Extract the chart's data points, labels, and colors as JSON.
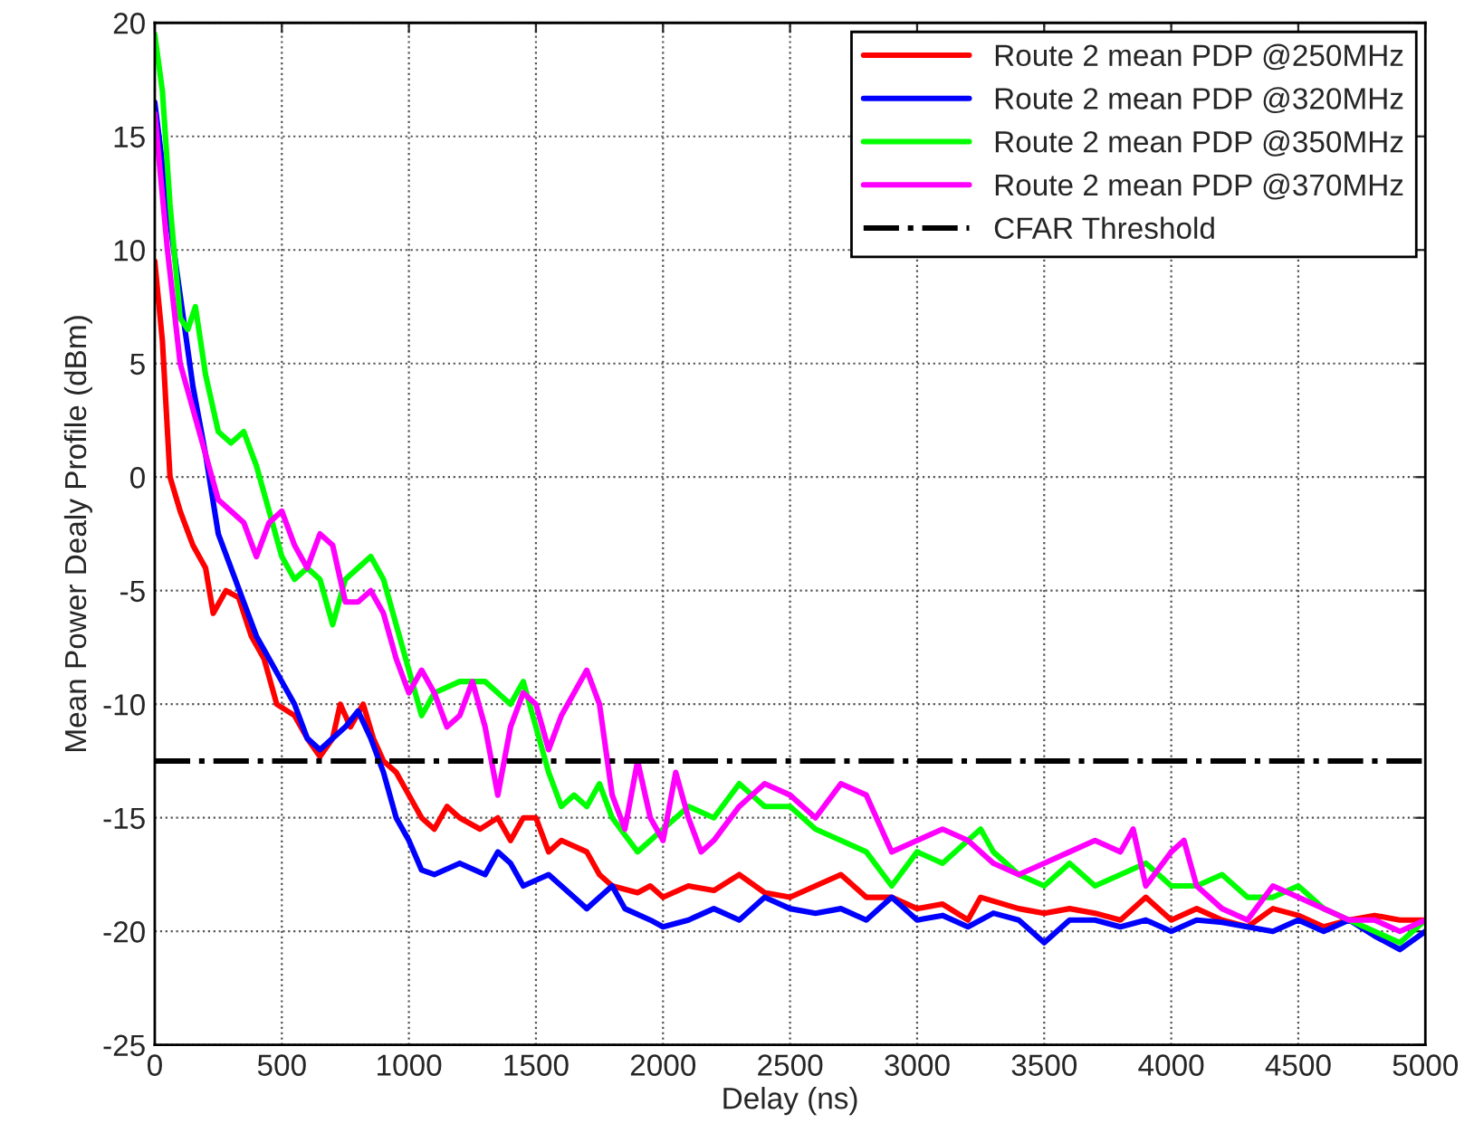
{
  "chart_data": {
    "type": "line",
    "xlabel": "Delay (ns)",
    "ylabel": "Mean Power Dealy Profile (dBm)",
    "xlim": [
      0,
      5000
    ],
    "xticks": [
      0,
      500,
      1000,
      1500,
      2000,
      2500,
      3000,
      3500,
      4000,
      4500,
      5000
    ],
    "ylim": [
      -25,
      20
    ],
    "yticks": [
      -25,
      -20,
      -15,
      -10,
      -5,
      0,
      5,
      10,
      15,
      20
    ],
    "grid": true,
    "legend": "top right",
    "line_style": "solid",
    "series": [
      {
        "name": "Route 2 mean PDP @250MHz",
        "color": "#ff0000",
        "x": [
          0,
          30,
          60,
          100,
          150,
          200,
          230,
          280,
          330,
          380,
          430,
          480,
          550,
          600,
          650,
          700,
          730,
          770,
          820,
          860,
          900,
          950,
          1000,
          1050,
          1100,
          1150,
          1200,
          1280,
          1350,
          1400,
          1450,
          1500,
          1550,
          1600,
          1700,
          1750,
          1800,
          1900,
          1950,
          2000,
          2100,
          2200,
          2300,
          2400,
          2500,
          2600,
          2700,
          2800,
          2900,
          3000,
          3100,
          3200,
          3250,
          3400,
          3500,
          3600,
          3700,
          3800,
          3900,
          4000,
          4100,
          4200,
          4300,
          4400,
          4500,
          4600,
          4700,
          4800,
          4900,
          5000
        ],
        "values": [
          9.5,
          6,
          0,
          -1.5,
          -3,
          -4,
          -6,
          -5,
          -5.3,
          -7,
          -8,
          -10,
          -10.5,
          -11.5,
          -12.3,
          -11.5,
          -10,
          -11,
          -10,
          -11.5,
          -12.5,
          -13,
          -14,
          -15,
          -15.5,
          -14.5,
          -15,
          -15.5,
          -15,
          -16,
          -15,
          -15,
          -16.5,
          -16,
          -16.5,
          -17.5,
          -18,
          -18.3,
          -18,
          -18.5,
          -18,
          -18.2,
          -17.5,
          -18.3,
          -18.5,
          -18,
          -17.5,
          -18.5,
          -18.5,
          -19,
          -18.8,
          -19.5,
          -18.5,
          -19,
          -19.2,
          -19,
          -19.2,
          -19.5,
          -18.5,
          -19.5,
          -19,
          -19.5,
          -19.8,
          -19,
          -19.3,
          -19.8,
          -19.5,
          -19.3,
          -19.5,
          -19.5
        ]
      },
      {
        "name": "Route 2 mean PDP @320MHz",
        "color": "#0000ff",
        "x": [
          0,
          50,
          100,
          150,
          200,
          250,
          300,
          350,
          400,
          450,
          500,
          550,
          600,
          650,
          700,
          750,
          800,
          850,
          900,
          950,
          1000,
          1050,
          1100,
          1200,
          1300,
          1350,
          1400,
          1450,
          1550,
          1650,
          1700,
          1750,
          1800,
          1850,
          1950,
          2000,
          2100,
          2200,
          2300,
          2400,
          2500,
          2600,
          2700,
          2800,
          2900,
          3000,
          3100,
          3200,
          3300,
          3400,
          3500,
          3600,
          3700,
          3800,
          3900,
          4000,
          4100,
          4200,
          4300,
          4400,
          4500,
          4600,
          4700,
          4800,
          4900,
          5000
        ],
        "values": [
          16.5,
          12,
          8,
          4,
          1,
          -2.5,
          -4,
          -5.5,
          -7,
          -8,
          -9,
          -10,
          -11.5,
          -12,
          -11.5,
          -11,
          -10.3,
          -11.5,
          -13,
          -15,
          -16,
          -17.3,
          -17.5,
          -17,
          -17.5,
          -16.5,
          -17,
          -18,
          -17.5,
          -18.5,
          -19,
          -18.5,
          -18,
          -19,
          -19.5,
          -19.8,
          -19.5,
          -19,
          -19.5,
          -18.5,
          -19,
          -19.2,
          -19,
          -19.5,
          -18.5,
          -19.5,
          -19.3,
          -19.8,
          -19.2,
          -19.5,
          -20.5,
          -19.5,
          -19.5,
          -19.8,
          -19.5,
          -20,
          -19.5,
          -19.6,
          -19.8,
          -20,
          -19.5,
          -20,
          -19.5,
          -20.2,
          -20.8,
          -20
        ]
      },
      {
        "name": "Route 2 mean PDP @350MHz",
        "color": "#00ff00",
        "x": [
          0,
          30,
          60,
          100,
          130,
          160,
          200,
          250,
          300,
          350,
          400,
          450,
          500,
          550,
          600,
          650,
          700,
          750,
          800,
          850,
          900,
          950,
          1000,
          1050,
          1100,
          1200,
          1300,
          1400,
          1450,
          1500,
          1550,
          1600,
          1650,
          1700,
          1750,
          1800,
          1900,
          2000,
          2100,
          2200,
          2300,
          2400,
          2500,
          2600,
          2700,
          2800,
          2900,
          3000,
          3100,
          3200,
          3250,
          3300,
          3400,
          3500,
          3600,
          3700,
          3800,
          3900,
          4000,
          4100,
          4200,
          4300,
          4400,
          4500,
          4600,
          4700,
          4800,
          4900,
          5000
        ],
        "values": [
          19.5,
          17,
          12,
          7,
          6.5,
          7.5,
          4.5,
          2,
          1.5,
          2,
          0.5,
          -1.5,
          -3.5,
          -4.5,
          -4,
          -4.5,
          -6.5,
          -4.5,
          -4,
          -3.5,
          -4.5,
          -6.5,
          -8.5,
          -10.5,
          -9.5,
          -9,
          -9,
          -10,
          -9,
          -11,
          -13,
          -14.5,
          -14,
          -14.5,
          -13.5,
          -15,
          -16.5,
          -15.5,
          -14.5,
          -15,
          -13.5,
          -14.5,
          -14.5,
          -15.5,
          -16,
          -16.5,
          -18,
          -16.5,
          -17,
          -16,
          -15.5,
          -16.5,
          -17.5,
          -18,
          -17,
          -18,
          -17.5,
          -17,
          -18,
          -18,
          -17.5,
          -18.5,
          -18.5,
          -18,
          -19,
          -19.5,
          -20,
          -20.5,
          -19.5
        ]
      },
      {
        "name": "Route 2 mean PDP @370MHz",
        "color": "#ff00ff",
        "x": [
          0,
          50,
          100,
          150,
          200,
          250,
          300,
          350,
          400,
          450,
          500,
          550,
          600,
          650,
          700,
          750,
          800,
          850,
          900,
          950,
          1000,
          1050,
          1100,
          1150,
          1200,
          1250,
          1300,
          1350,
          1400,
          1450,
          1500,
          1550,
          1600,
          1650,
          1700,
          1750,
          1800,
          1850,
          1900,
          1950,
          2000,
          2050,
          2100,
          2150,
          2200,
          2300,
          2400,
          2500,
          2600,
          2700,
          2800,
          2900,
          3000,
          3100,
          3200,
          3300,
          3400,
          3500,
          3600,
          3700,
          3800,
          3850,
          3900,
          4000,
          4050,
          4100,
          4200,
          4300,
          4400,
          4500,
          4600,
          4700,
          4800,
          4900,
          5000
        ],
        "values": [
          16,
          10,
          5,
          3,
          1,
          -1,
          -1.5,
          -2,
          -3.5,
          -2,
          -1.5,
          -3,
          -4,
          -2.5,
          -3,
          -5.5,
          -5.5,
          -5,
          -6,
          -8,
          -9.5,
          -8.5,
          -9.5,
          -11,
          -10.5,
          -9,
          -11,
          -14,
          -11,
          -9.5,
          -10,
          -12,
          -10.5,
          -9.5,
          -8.5,
          -10,
          -14,
          -15.5,
          -12.5,
          -15,
          -16,
          -13,
          -15,
          -16.5,
          -16,
          -14.5,
          -13.5,
          -14,
          -15,
          -13.5,
          -14,
          -16.5,
          -16,
          -15.5,
          -16,
          -17,
          -17.5,
          -17,
          -16.5,
          -16,
          -16.5,
          -15.5,
          -18,
          -16.5,
          -16,
          -18,
          -19,
          -19.5,
          -18,
          -18.5,
          -19,
          -19.5,
          -19.5,
          -20,
          -19.5
        ]
      }
    ],
    "ref_lines": [
      {
        "axis": "y",
        "value": -12.5,
        "label": "CFAR Threshold",
        "color": "#000000",
        "line_style": "dashdot"
      }
    ]
  }
}
